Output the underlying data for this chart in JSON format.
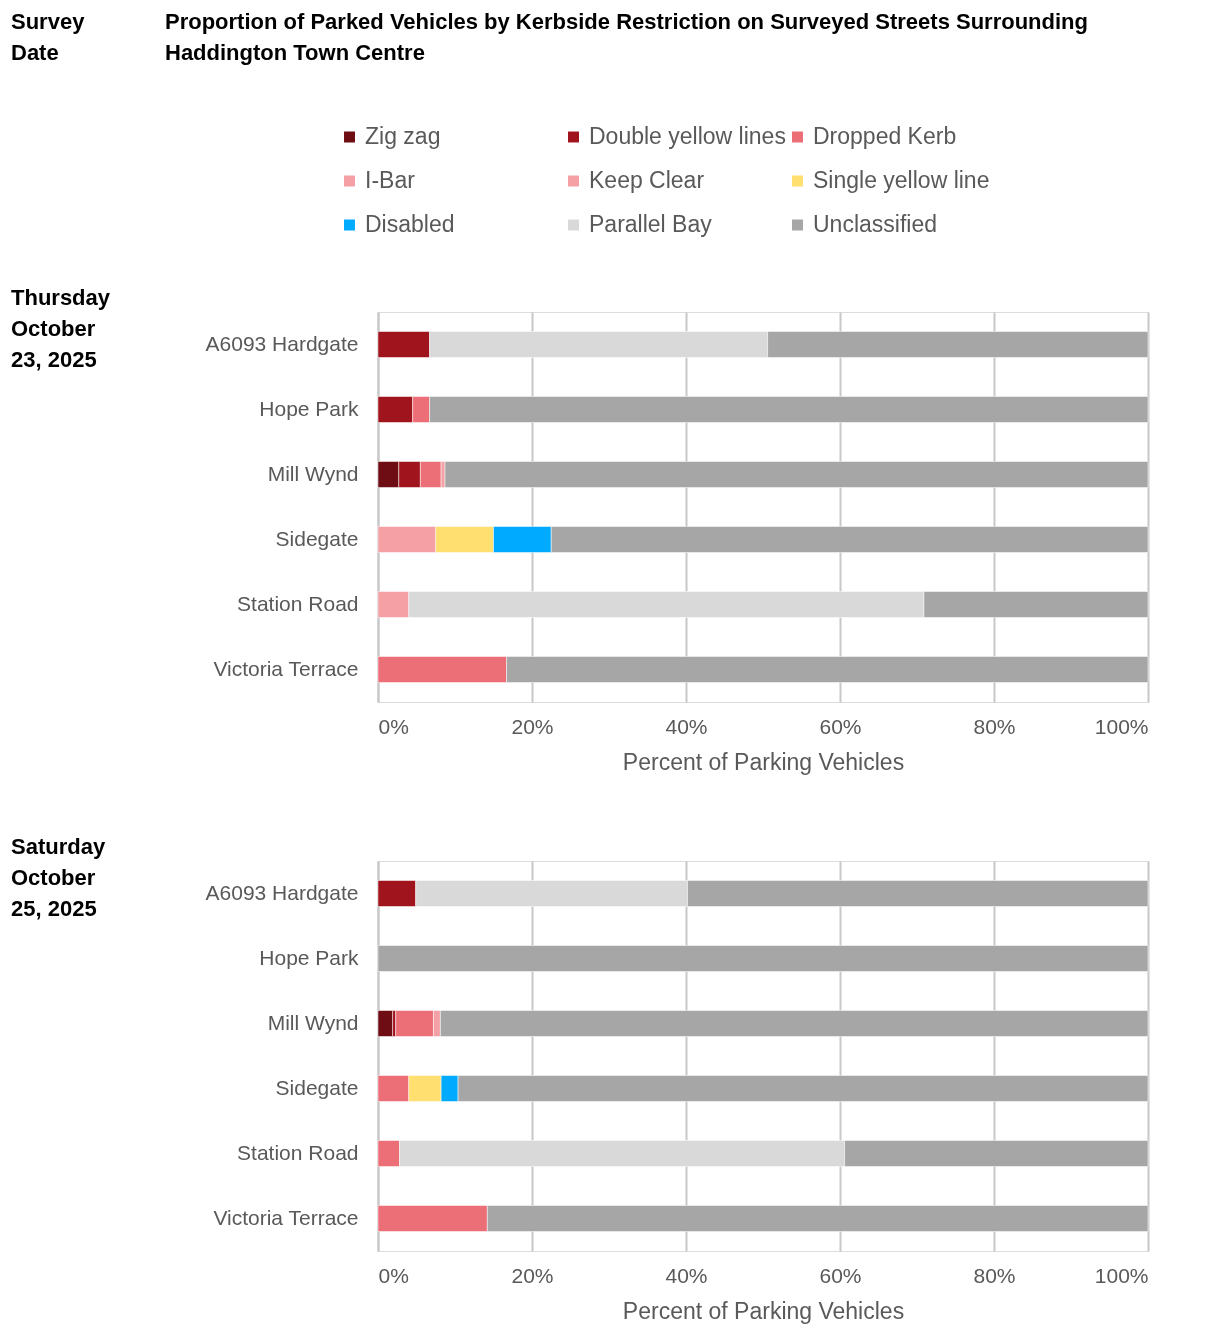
{
  "chart_data": [
    {
      "type": "bar",
      "orientation": "horizontal",
      "stacked": true,
      "title": "Proportion of Parked Vehicles by Kerbside Restriction on Surveyed Streets Surrounding Haddington Town Centre",
      "subtitle": "Thursday October 23, 2025",
      "annotations": [
        "Survey Date"
      ],
      "xlabel": "Percent of Parking Vehicles",
      "categories": [
        "A6093 Hardgate",
        "Hope Park",
        "Mill Wynd",
        "Sidegate",
        "Station Road",
        "Victoria Terrace"
      ],
      "series": [
        {
          "name": "Zig zag",
          "color": "#6f0d14",
          "values": [
            null,
            null,
            2.7,
            null,
            null,
            null
          ]
        },
        {
          "name": "Double yellow lines",
          "color": "#a0141d",
          "values": [
            6.7,
            4.5,
            2.8,
            null,
            null,
            null
          ]
        },
        {
          "name": "Dropped Kerb",
          "color": "#ec6e76",
          "values": [
            null,
            2.2,
            2.7,
            null,
            null,
            16.7
          ]
        },
        {
          "name": "I-Bar",
          "color": "#f4a0a5",
          "values": [
            null,
            null,
            0.5,
            null,
            null,
            null
          ]
        },
        {
          "name": "Keep Clear",
          "color": "#f4a0a5",
          "values": [
            null,
            null,
            null,
            7.5,
            4.0,
            null
          ]
        },
        {
          "name": "Single yellow line",
          "color": "#ffdf70",
          "values": [
            null,
            null,
            null,
            7.5,
            null,
            null
          ]
        },
        {
          "name": "Disabled",
          "color": "#00aaff",
          "values": [
            null,
            null,
            null,
            7.5,
            null,
            null
          ]
        },
        {
          "name": "Parallel Bay",
          "color": "#d9d9d9",
          "values": [
            43.9,
            null,
            null,
            null,
            66.9,
            null
          ]
        },
        {
          "name": "Unclassified",
          "color": "#a6a6a6",
          "values": [
            49.4,
            93.3,
            91.3,
            77.5,
            29.1,
            83.3
          ]
        }
      ],
      "xlim": [
        0,
        100
      ],
      "xticks": [
        {
          "value": 0,
          "label": "0%"
        },
        {
          "value": 20,
          "label": "20%"
        },
        {
          "value": 40,
          "label": "40%"
        },
        {
          "value": 60,
          "label": "60%"
        },
        {
          "value": 80,
          "label": "80%"
        },
        {
          "value": 100,
          "label": "100%"
        }
      ],
      "grid": "x",
      "legend": "top"
    },
    {
      "type": "bar",
      "orientation": "horizontal",
      "stacked": true,
      "subtitle": "Saturday October 25, 2025",
      "xlabel": "Percent of Parking Vehicles",
      "categories": [
        "A6093 Hardgate",
        "Hope Park",
        "Mill Wynd",
        "Sidegate",
        "Station Road",
        "Victoria Terrace"
      ],
      "series": [
        {
          "color": "#6f0d14",
          "values": [
            null,
            null,
            1.9,
            null,
            null,
            null
          ]
        },
        {
          "color": "#a0141d",
          "values": [
            4.9,
            null,
            0.4,
            null,
            null,
            null
          ]
        },
        {
          "color": "#ec6e76",
          "values": [
            null,
            null,
            4.9,
            4.0,
            2.8,
            14.2
          ]
        },
        {
          "color": "#f4a0a5",
          "values": [
            null,
            null,
            0.9,
            null,
            null,
            null
          ]
        },
        {
          "color": "#ffdf70",
          "values": [
            null,
            null,
            null,
            4.2,
            null,
            null
          ]
        },
        {
          "color": "#00aaff",
          "values": [
            null,
            null,
            null,
            2.2,
            null,
            null
          ]
        },
        {
          "color": "#d9d9d9",
          "values": [
            35.3,
            null,
            null,
            null,
            57.8,
            null
          ]
        },
        {
          "color": "#a6a6a6",
          "values": [
            59.8,
            100,
            91.9,
            89.6,
            39.4,
            85.8
          ]
        }
      ],
      "xlim": [
        0,
        100
      ],
      "xticks": [
        {
          "value": 0,
          "label": "0%"
        },
        {
          "value": 20,
          "label": "20%"
        },
        {
          "value": 40,
          "label": "40%"
        },
        {
          "value": 60,
          "label": "60%"
        },
        {
          "value": 80,
          "label": "80%"
        },
        {
          "value": 100,
          "label": "100%"
        }
      ],
      "grid": "x",
      "legend": false
    }
  ]
}
